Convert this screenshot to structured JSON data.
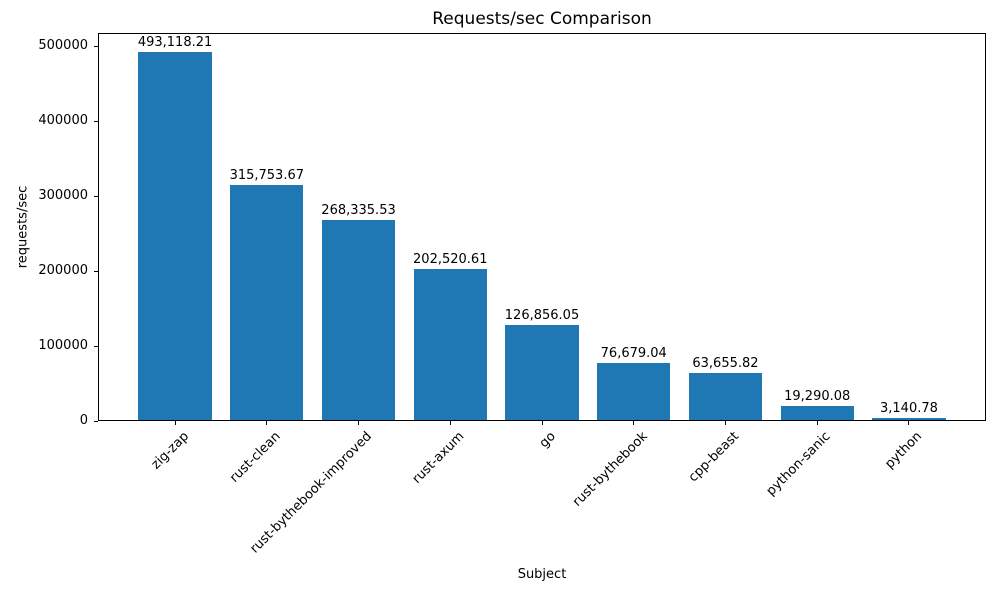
{
  "chart_data": {
    "type": "bar",
    "title": "Requests/sec Comparison",
    "xlabel": "Subject",
    "ylabel": "requests/sec",
    "categories": [
      "zig-zap",
      "rust-clean",
      "rust-bythebook-improved",
      "rust-axum",
      "go",
      "rust-bythebook",
      "cpp-beast",
      "python-sanic",
      "python"
    ],
    "values": [
      493118.21,
      315753.67,
      268335.53,
      202520.61,
      126856.05,
      76679.04,
      63655.82,
      19290.08,
      3140.78
    ],
    "value_labels": [
      "493,118.21",
      "315,753.67",
      "268,335.53",
      "202,520.61",
      "126,856.05",
      "76,679.04",
      "63,655.82",
      "19,290.08",
      "3,140.78"
    ],
    "yticks": [
      0,
      100000,
      200000,
      300000,
      400000,
      500000
    ],
    "ytick_labels": [
      "0",
      "100000",
      "200000",
      "300000",
      "400000",
      "500000"
    ],
    "ylim": [
      0,
      517774
    ],
    "bar_color": "#1f77b4",
    "bar_width_fraction": 0.8,
    "grid": false,
    "legend": null
  }
}
